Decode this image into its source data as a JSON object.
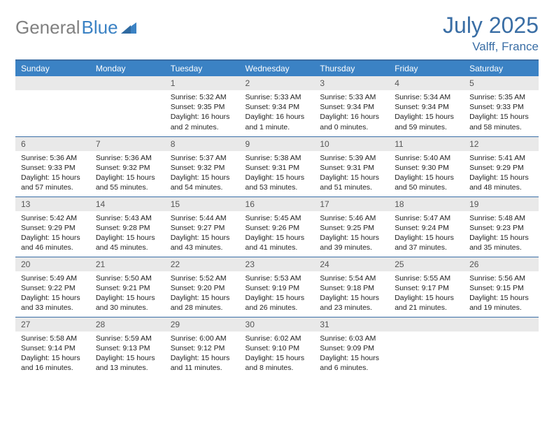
{
  "brand": {
    "part1": "General",
    "part2": "Blue"
  },
  "header": {
    "month": "July 2025",
    "location": "Valff, France"
  },
  "colors": {
    "brand_blue": "#3b82c4",
    "title_blue": "#3a6ea5",
    "header_bg": "#3b82c4",
    "daynum_bg": "#e9e9e9",
    "text": "#333333",
    "gray": "#808080"
  },
  "dayNames": [
    "Sunday",
    "Monday",
    "Tuesday",
    "Wednesday",
    "Thursday",
    "Friday",
    "Saturday"
  ],
  "weeks": [
    [
      null,
      null,
      {
        "n": "1",
        "sr": "5:32 AM",
        "ss": "9:35 PM",
        "dl": "16 hours and 2 minutes."
      },
      {
        "n": "2",
        "sr": "5:33 AM",
        "ss": "9:34 PM",
        "dl": "16 hours and 1 minute."
      },
      {
        "n": "3",
        "sr": "5:33 AM",
        "ss": "9:34 PM",
        "dl": "16 hours and 0 minutes."
      },
      {
        "n": "4",
        "sr": "5:34 AM",
        "ss": "9:34 PM",
        "dl": "15 hours and 59 minutes."
      },
      {
        "n": "5",
        "sr": "5:35 AM",
        "ss": "9:33 PM",
        "dl": "15 hours and 58 minutes."
      }
    ],
    [
      {
        "n": "6",
        "sr": "5:36 AM",
        "ss": "9:33 PM",
        "dl": "15 hours and 57 minutes."
      },
      {
        "n": "7",
        "sr": "5:36 AM",
        "ss": "9:32 PM",
        "dl": "15 hours and 55 minutes."
      },
      {
        "n": "8",
        "sr": "5:37 AM",
        "ss": "9:32 PM",
        "dl": "15 hours and 54 minutes."
      },
      {
        "n": "9",
        "sr": "5:38 AM",
        "ss": "9:31 PM",
        "dl": "15 hours and 53 minutes."
      },
      {
        "n": "10",
        "sr": "5:39 AM",
        "ss": "9:31 PM",
        "dl": "15 hours and 51 minutes."
      },
      {
        "n": "11",
        "sr": "5:40 AM",
        "ss": "9:30 PM",
        "dl": "15 hours and 50 minutes."
      },
      {
        "n": "12",
        "sr": "5:41 AM",
        "ss": "9:29 PM",
        "dl": "15 hours and 48 minutes."
      }
    ],
    [
      {
        "n": "13",
        "sr": "5:42 AM",
        "ss": "9:29 PM",
        "dl": "15 hours and 46 minutes."
      },
      {
        "n": "14",
        "sr": "5:43 AM",
        "ss": "9:28 PM",
        "dl": "15 hours and 45 minutes."
      },
      {
        "n": "15",
        "sr": "5:44 AM",
        "ss": "9:27 PM",
        "dl": "15 hours and 43 minutes."
      },
      {
        "n": "16",
        "sr": "5:45 AM",
        "ss": "9:26 PM",
        "dl": "15 hours and 41 minutes."
      },
      {
        "n": "17",
        "sr": "5:46 AM",
        "ss": "9:25 PM",
        "dl": "15 hours and 39 minutes."
      },
      {
        "n": "18",
        "sr": "5:47 AM",
        "ss": "9:24 PM",
        "dl": "15 hours and 37 minutes."
      },
      {
        "n": "19",
        "sr": "5:48 AM",
        "ss": "9:23 PM",
        "dl": "15 hours and 35 minutes."
      }
    ],
    [
      {
        "n": "20",
        "sr": "5:49 AM",
        "ss": "9:22 PM",
        "dl": "15 hours and 33 minutes."
      },
      {
        "n": "21",
        "sr": "5:50 AM",
        "ss": "9:21 PM",
        "dl": "15 hours and 30 minutes."
      },
      {
        "n": "22",
        "sr": "5:52 AM",
        "ss": "9:20 PM",
        "dl": "15 hours and 28 minutes."
      },
      {
        "n": "23",
        "sr": "5:53 AM",
        "ss": "9:19 PM",
        "dl": "15 hours and 26 minutes."
      },
      {
        "n": "24",
        "sr": "5:54 AM",
        "ss": "9:18 PM",
        "dl": "15 hours and 23 minutes."
      },
      {
        "n": "25",
        "sr": "5:55 AM",
        "ss": "9:17 PM",
        "dl": "15 hours and 21 minutes."
      },
      {
        "n": "26",
        "sr": "5:56 AM",
        "ss": "9:15 PM",
        "dl": "15 hours and 19 minutes."
      }
    ],
    [
      {
        "n": "27",
        "sr": "5:58 AM",
        "ss": "9:14 PM",
        "dl": "15 hours and 16 minutes."
      },
      {
        "n": "28",
        "sr": "5:59 AM",
        "ss": "9:13 PM",
        "dl": "15 hours and 13 minutes."
      },
      {
        "n": "29",
        "sr": "6:00 AM",
        "ss": "9:12 PM",
        "dl": "15 hours and 11 minutes."
      },
      {
        "n": "30",
        "sr": "6:02 AM",
        "ss": "9:10 PM",
        "dl": "15 hours and 8 minutes."
      },
      {
        "n": "31",
        "sr": "6:03 AM",
        "ss": "9:09 PM",
        "dl": "15 hours and 6 minutes."
      },
      null,
      null
    ]
  ],
  "labels": {
    "sunrise": "Sunrise: ",
    "sunset": "Sunset: ",
    "daylight": "Daylight: "
  }
}
